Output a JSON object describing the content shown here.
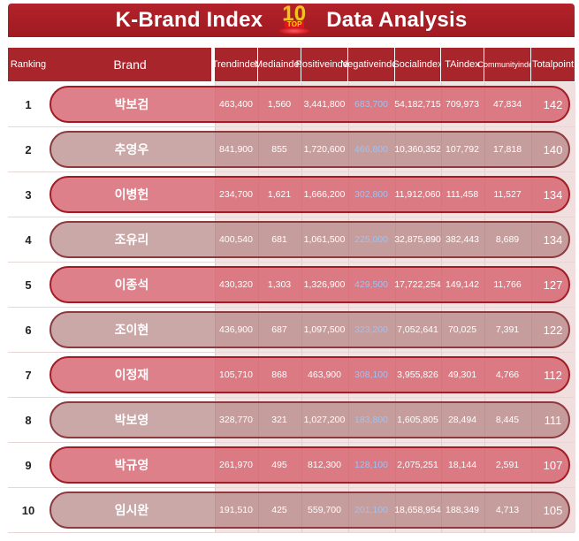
{
  "title": {
    "left": "K-Brand Index",
    "right": "Data Analysis",
    "badge_number": "10",
    "badge_text": "TOP"
  },
  "header": {
    "ranking": "Ranking",
    "brand": "Brand",
    "trend": [
      "Trend",
      "index"
    ],
    "media": [
      "Media",
      "index"
    ],
    "positive": [
      "Positive",
      "index"
    ],
    "negative": [
      "Negative",
      "index"
    ],
    "social": [
      "Social",
      "index"
    ],
    "ta": [
      "TA",
      "index"
    ],
    "community": [
      "Community",
      "index"
    ],
    "total": [
      "Total",
      "point"
    ]
  },
  "rows": [
    {
      "rank": "1",
      "brand": "박보검",
      "trend": "463,400",
      "media": "1,560",
      "positive": "3,441,800",
      "negative": "683,700",
      "social": "54,182,715",
      "ta": "709,973",
      "community": "47,834",
      "total": "142"
    },
    {
      "rank": "2",
      "brand": "추영우",
      "trend": "841,900",
      "media": "855",
      "positive": "1,720,600",
      "negative": "466,800",
      "social": "10,360,352",
      "ta": "107,792",
      "community": "17,818",
      "total": "140"
    },
    {
      "rank": "3",
      "brand": "이병헌",
      "trend": "234,700",
      "media": "1,621",
      "positive": "1,666,200",
      "negative": "302,800",
      "social": "11,912,060",
      "ta": "111,458",
      "community": "11,527",
      "total": "134"
    },
    {
      "rank": "4",
      "brand": "조유리",
      "trend": "400,540",
      "media": "681",
      "positive": "1,061,500",
      "negative": "225,000",
      "social": "32,875,890",
      "ta": "382,443",
      "community": "8,689",
      "total": "134"
    },
    {
      "rank": "5",
      "brand": "이종석",
      "trend": "430,320",
      "media": "1,303",
      "positive": "1,326,900",
      "negative": "429,500",
      "social": "17,722,254",
      "ta": "149,142",
      "community": "11,766",
      "total": "127"
    },
    {
      "rank": "6",
      "brand": "조이현",
      "trend": "436,900",
      "media": "687",
      "positive": "1,097,500",
      "negative": "323,200",
      "social": "7,052,641",
      "ta": "70,025",
      "community": "7,391",
      "total": "122"
    },
    {
      "rank": "7",
      "brand": "이정재",
      "trend": "105,710",
      "media": "868",
      "positive": "463,900",
      "negative": "308,100",
      "social": "3,955,826",
      "ta": "49,301",
      "community": "4,766",
      "total": "112"
    },
    {
      "rank": "8",
      "brand": "박보영",
      "trend": "328,770",
      "media": "321",
      "positive": "1,027,200",
      "negative": "183,800",
      "social": "1,605,805",
      "ta": "28,494",
      "community": "8,445",
      "total": "111"
    },
    {
      "rank": "9",
      "brand": "박규영",
      "trend": "261,970",
      "media": "495",
      "positive": "812,300",
      "negative": "128,100",
      "social": "2,075,251",
      "ta": "18,144",
      "community": "2,591",
      "total": "107"
    },
    {
      "rank": "10",
      "brand": "임시완",
      "trend": "191,510",
      "media": "425",
      "positive": "559,700",
      "negative": "201,100",
      "social": "18,658,954",
      "ta": "188,349",
      "community": "4,713",
      "total": "105"
    }
  ]
}
